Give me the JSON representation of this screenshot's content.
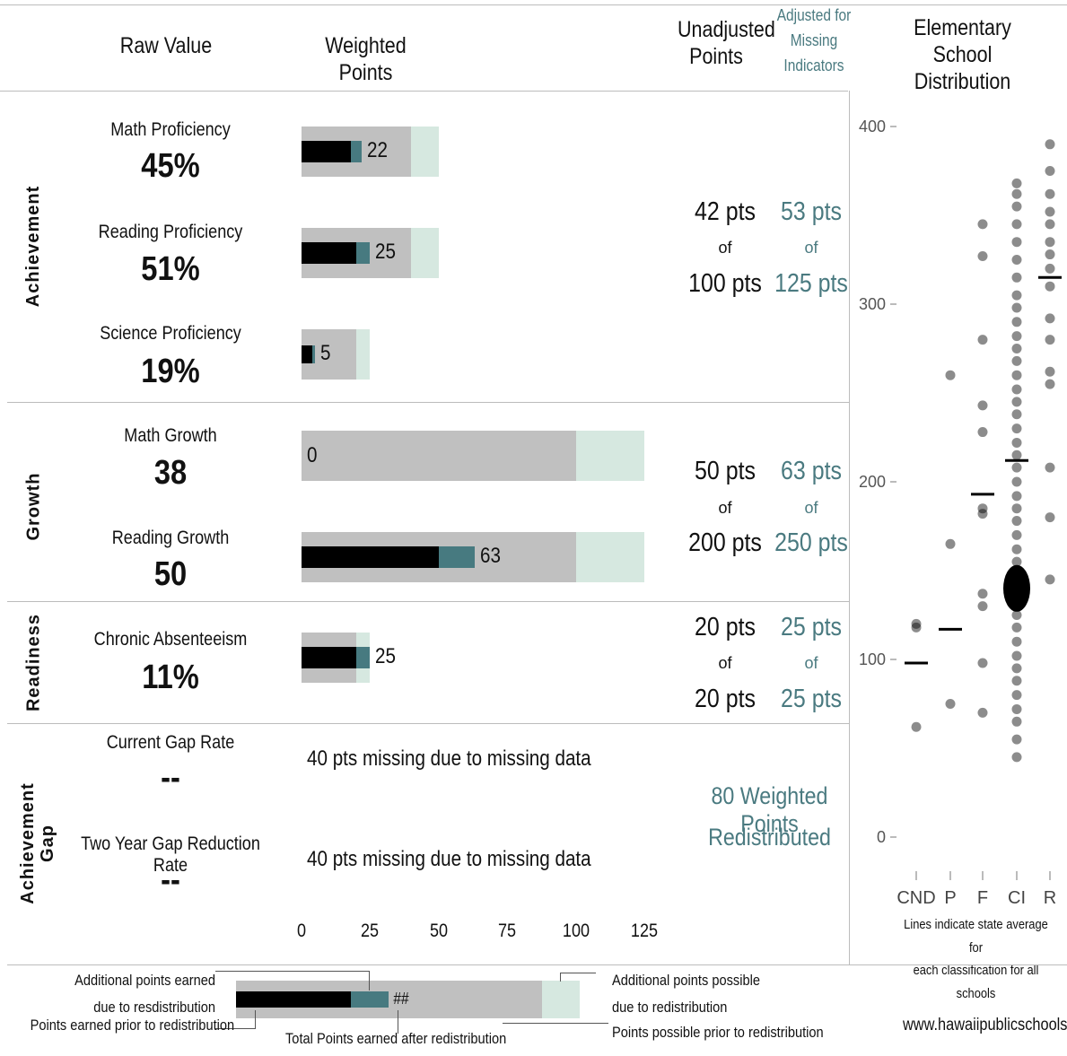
{
  "headers": {
    "raw_value": "Raw Value",
    "weighted_points": "Weighted Points",
    "unadjusted": "Unadjusted Points",
    "adjusted": "Adjusted for Missing Indicators",
    "distribution": "Elementary School Distribution"
  },
  "sections": {
    "achievement": "Achievement",
    "growth": "Growth",
    "readiness": "Readiness",
    "gap": "Achievement Gap"
  },
  "indicators": {
    "math_prof": {
      "label": "Math Proficiency",
      "value": "45%"
    },
    "reading_prof": {
      "label": "Reading Proficiency",
      "value": "51%"
    },
    "science_prof": {
      "label": "Science Proficiency",
      "value": "19%"
    },
    "math_growth": {
      "label": "Math Growth",
      "value": "38"
    },
    "reading_growth": {
      "label": "Reading Growth",
      "value": "50"
    },
    "absenteeism": {
      "label": "Chronic Absenteeism",
      "value": "11%"
    },
    "gap_rate": {
      "label": "Current Gap Rate",
      "value": "--",
      "missing_text": "40 pts missing due to missing data"
    },
    "gap_reduction": {
      "label": "Two Year Gap Reduction Rate",
      "value": "--",
      "missing_text": "40 pts missing due to missing data"
    }
  },
  "points": {
    "achievement": {
      "unadj": "42 pts",
      "unadj_total": "100 pts",
      "adj": "53 pts",
      "adj_total": "125 pts",
      "of": "of"
    },
    "growth": {
      "unadj": "50 pts",
      "unadj_total": "200 pts",
      "adj": "63 pts",
      "adj_total": "250 pts",
      "of": "of"
    },
    "readiness": {
      "unadj": "20 pts",
      "unadj_total": "20 pts",
      "adj": "25 pts",
      "adj_total": "25 pts",
      "of": "of"
    },
    "gap_redistributed_1": "80 Weighted Points",
    "gap_redistributed_2": "Redistributed"
  },
  "legend": {
    "additional_earned_1": "Additional points earned",
    "additional_earned_2": "due to resdistribution",
    "earned_prior": "Points earned prior to redistribution",
    "total_earned": "Total Points earned after redistribution",
    "sample_label": "##",
    "additional_possible_1": "Additional points possible",
    "additional_possible_2": "due to redistribution",
    "possible_prior": "Points possible prior to redistribution"
  },
  "distribution": {
    "yticks": [
      "400",
      "300",
      "200",
      "100",
      "0"
    ],
    "categories": [
      "CND",
      "P",
      "F",
      "CI",
      "R"
    ],
    "note_1": "Lines indicate state average for",
    "note_2": "each classification for all schools"
  },
  "footer": {
    "website": "www.hawaiipublicschools.org"
  },
  "colors": {
    "earned": "#000000",
    "additional_earned": "#477a80",
    "possible": "#c0c0c0",
    "additional_possible": "#d6e8e0",
    "teal_text": "#4a7a80"
  },
  "chart_data": [
    {
      "type": "bar",
      "title": "Weighted Points",
      "xlim": [
        0,
        125
      ],
      "xticks": [
        "0",
        "25",
        "50",
        "75",
        "100",
        "125"
      ],
      "categories": [
        "Math Proficiency",
        "Reading Proficiency",
        "Science Proficiency",
        "Math Growth",
        "Reading Growth",
        "Chronic Absenteeism"
      ],
      "series": [
        {
          "name": "Points earned prior to redistribution",
          "values": [
            18,
            20,
            4,
            0,
            50,
            20
          ]
        },
        {
          "name": "Additional points earned due to redistribution",
          "values": [
            4,
            5,
            1,
            0,
            13,
            5
          ]
        },
        {
          "name": "Points possible prior to redistribution",
          "values": [
            40,
            40,
            20,
            100,
            100,
            20
          ]
        },
        {
          "name": "Additional points possible due to redistribution",
          "values": [
            10,
            10,
            5,
            25,
            25,
            5
          ]
        }
      ],
      "data_labels": [
        "22",
        "25",
        "5",
        "0",
        "63",
        "25"
      ]
    },
    {
      "type": "scatter",
      "title": "Elementary School Distribution",
      "ylim": [
        0,
        400
      ],
      "categories": [
        "CND",
        "P",
        "F",
        "CI",
        "R"
      ],
      "state_average": {
        "CND": 98,
        "P": 117,
        "F": 193,
        "CI": 212,
        "R": 315
      },
      "points": {
        "CND": [
          120,
          118,
          62
        ],
        "P": [
          260,
          165,
          75
        ],
        "F": [
          345,
          327,
          280,
          243,
          228,
          185,
          182,
          137,
          130,
          98,
          70
        ],
        "CI": [
          368,
          362,
          355,
          345,
          335,
          325,
          315,
          305,
          298,
          290,
          282,
          275,
          268,
          260,
          252,
          245,
          238,
          230,
          222,
          215,
          208,
          200,
          192,
          185,
          178,
          170,
          162,
          155,
          148,
          140,
          132,
          125,
          118,
          110,
          102,
          95,
          88,
          80,
          72,
          65,
          55,
          45
        ],
        "R": [
          390,
          375,
          362,
          352,
          345,
          335,
          328,
          320,
          310,
          292,
          280,
          262,
          255,
          208,
          180,
          145
        ]
      },
      "cluster": {
        "CI": 140
      }
    }
  ]
}
